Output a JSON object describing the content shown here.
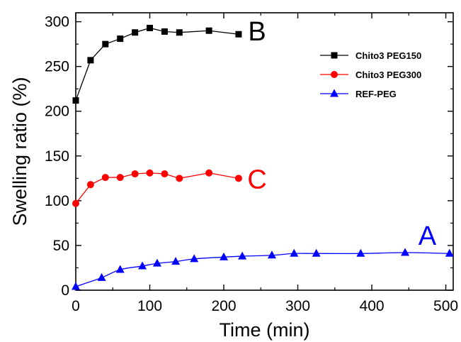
{
  "chart_data": {
    "type": "line",
    "title": "",
    "xlabel": "Time (min)",
    "ylabel": "Swelling ratio (%)",
    "xlim": [
      0,
      510
    ],
    "ylim": [
      0,
      310
    ],
    "xticks": [
      0,
      100,
      200,
      300,
      400,
      500
    ],
    "yticks": [
      0,
      50,
      100,
      150,
      200,
      250,
      300
    ],
    "grid": false,
    "legend_position": "top-right",
    "series": [
      {
        "name": "Chito3 PEG150",
        "color": "#000000",
        "marker": "square",
        "x": [
          0,
          20,
          40,
          60,
          80,
          100,
          120,
          140,
          180,
          220
        ],
        "y": [
          212,
          257,
          275,
          281,
          288,
          293,
          289,
          288,
          290,
          286
        ]
      },
      {
        "name": "Chito3 PEG300",
        "color": "#ff0000",
        "marker": "circle",
        "x": [
          0,
          20,
          40,
          60,
          80,
          100,
          120,
          140,
          180,
          220
        ],
        "y": [
          97,
          118,
          126,
          126,
          130,
          131,
          130,
          125,
          131,
          125
        ]
      },
      {
        "name": "REF-PEG",
        "color": "#0000ff",
        "marker": "triangle",
        "x": [
          0,
          35,
          60,
          90,
          110,
          135,
          160,
          200,
          225,
          265,
          295,
          325,
          385,
          445,
          505
        ],
        "y": [
          4,
          14,
          23,
          27,
          30,
          32,
          35,
          37,
          38,
          39,
          41,
          41,
          41,
          42,
          41
        ]
      }
    ],
    "annotations": [
      {
        "text": "B",
        "x": 245,
        "y": 290,
        "color": "#000000"
      },
      {
        "text": "C",
        "x": 245,
        "y": 125,
        "color": "#ff0000"
      },
      {
        "text": "A",
        "x": 475,
        "y": 62,
        "color": "#0000ff"
      }
    ]
  }
}
